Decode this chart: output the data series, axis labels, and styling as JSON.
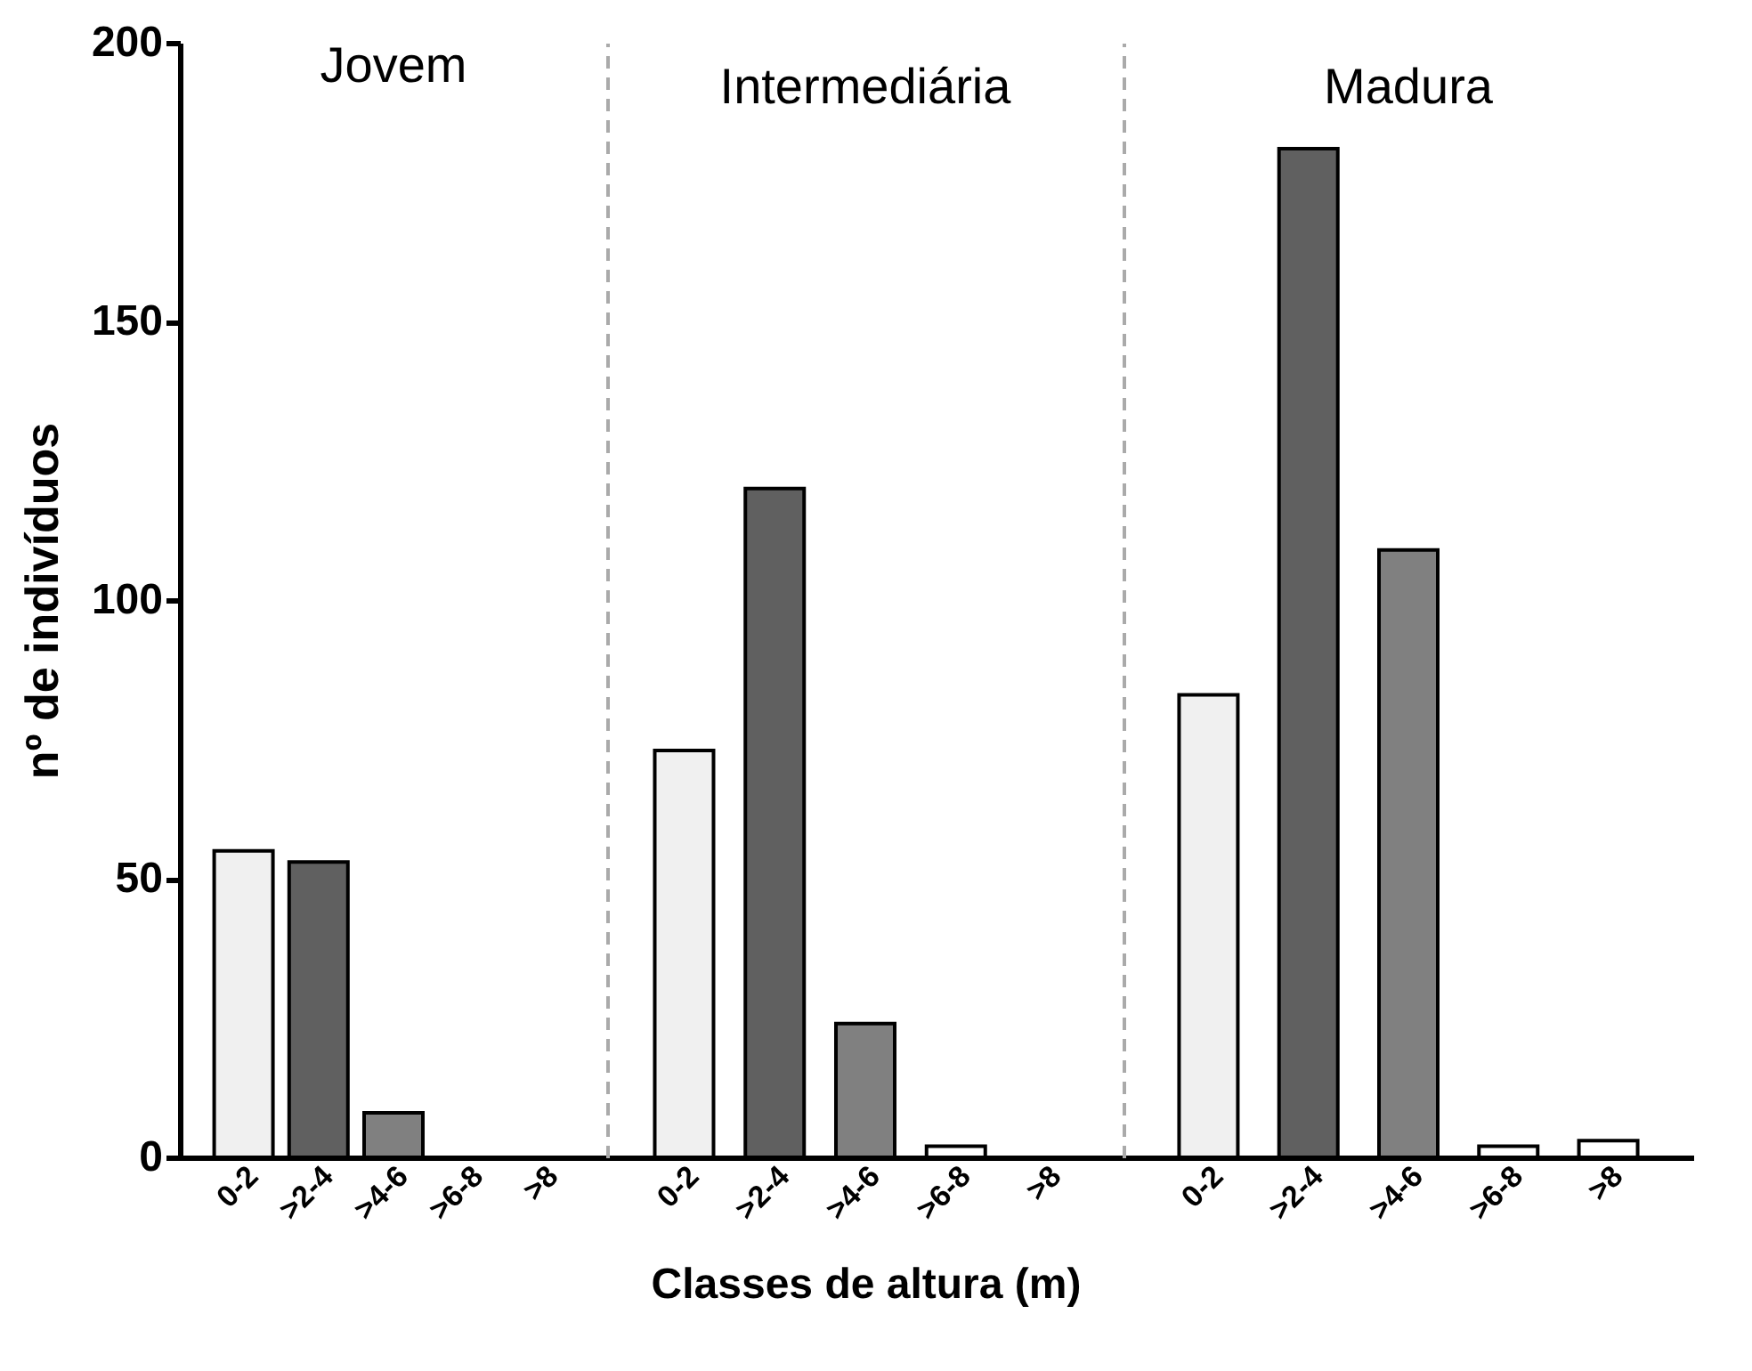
{
  "chart_data": [
    {
      "type": "bar",
      "title": "Jovem",
      "ylabel": "nº de indivíduos",
      "categories": [
        "0-2",
        ">2-4",
        ">4-6",
        ">6-8",
        ">8"
      ],
      "values": [
        55,
        53,
        8,
        0,
        0
      ],
      "colors": [
        "#f0f0f0",
        "#606060",
        "#808080",
        "#ffffff",
        "#ffffff"
      ],
      "ylim": [
        0,
        200
      ],
      "yticks": [
        0,
        50,
        100,
        150,
        200
      ]
    },
    {
      "type": "bar",
      "title": "Intermediária",
      "xlabel": "Classes de altura (m)",
      "categories": [
        "0-2",
        ">2-4",
        ">4-6",
        ">6-8",
        ">8"
      ],
      "values": [
        73,
        120,
        24,
        2,
        0
      ],
      "colors": [
        "#f0f0f0",
        "#606060",
        "#808080",
        "#ffffff",
        "#ffffff"
      ],
      "ylim": [
        0,
        200
      ],
      "yticks": [
        0,
        50,
        100,
        150,
        200
      ],
      "tick_labels": "x"
    },
    {
      "type": "bar",
      "title": "Madura",
      "categories": [
        "0-2",
        ">2-4",
        ">4-6",
        ">6-8",
        ">8"
      ],
      "values": [
        83,
        181,
        109,
        2,
        3
      ],
      "colors": [
        "#f0f0f0",
        "#606060",
        "#808080",
        "#ffffff",
        "#ffffff"
      ],
      "ylim": [
        0,
        200
      ],
      "yticks": [
        0,
        50,
        100,
        150,
        200
      ],
      "tick_labels": "x"
    }
  ]
}
